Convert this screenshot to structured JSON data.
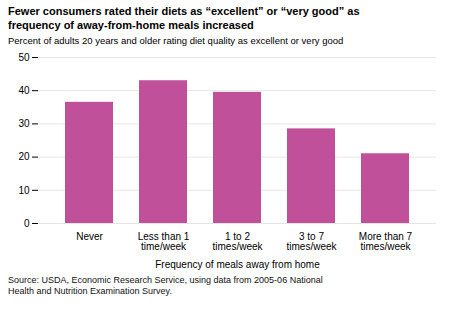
{
  "chart_data": {
    "type": "bar",
    "title": "Fewer consumers rated their diets as “excellent” or “very good” as\nfrequency of away-from-home meals increased",
    "subtitle": "Percent of adults 20 years and older rating diet quality as excellent or very good",
    "xlabel": "Frequency of meals away from home",
    "source": "Source: USDA, Economic Research Service, using data from 2005-06 National\nHealth and Nutrition Examination Survey.",
    "categories": [
      "Never",
      "Less than 1\ntime/week",
      "1 to 2\ntimes/week",
      "3 to 7\ntimes/week",
      "More than 7\ntimes/week"
    ],
    "values": [
      36.5,
      43.0,
      39.5,
      28.5,
      21.0
    ],
    "color": "#c0509a",
    "ylim": [
      0,
      50
    ],
    "yticks": [
      0,
      10,
      20,
      30,
      40,
      50
    ],
    "grid": true
  }
}
